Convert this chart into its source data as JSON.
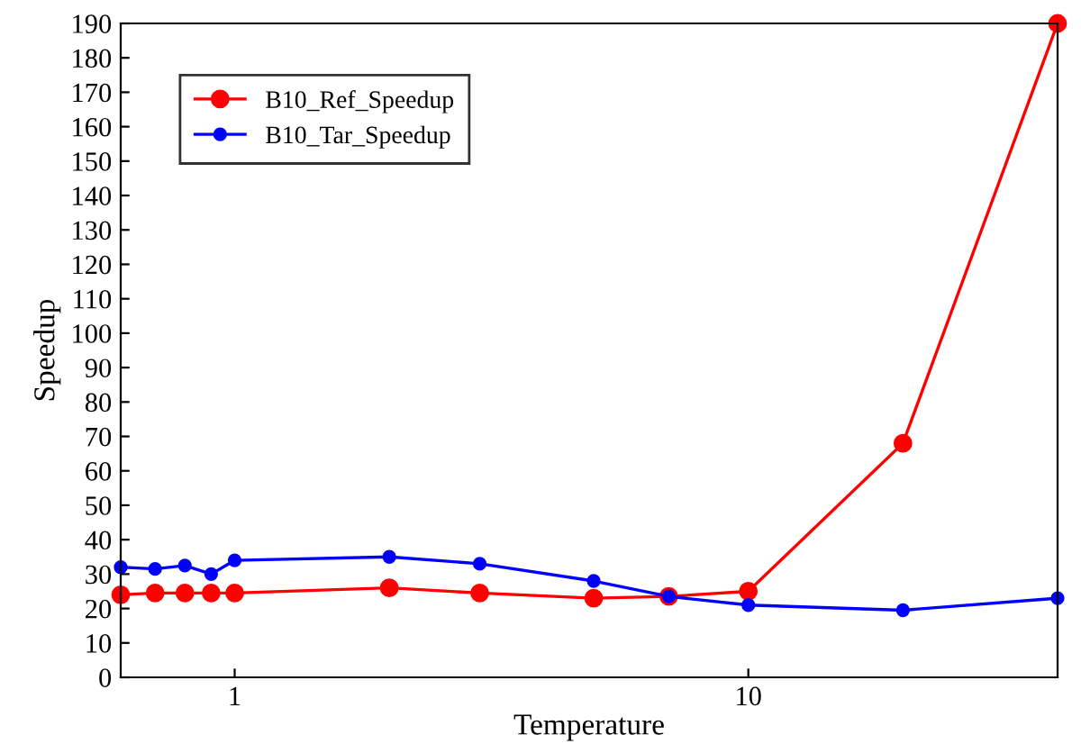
{
  "chart_data": {
    "type": "line",
    "xlabel": "Temperature",
    "ylabel": "Speedup",
    "log": "x",
    "x": [
      0.6,
      0.7,
      0.8,
      0.9,
      1,
      2,
      3,
      5,
      7,
      10,
      20,
      40
    ],
    "series": [
      {
        "name": "B10_Ref_Speedup",
        "color": "#ff0000",
        "values": [
          24,
          24.5,
          24.5,
          24.5,
          24.5,
          26,
          24.5,
          23,
          23.5,
          25,
          68,
          190
        ]
      },
      {
        "name": "B10_Tar_Speedup",
        "color": "#0000ff",
        "values": [
          32,
          31.5,
          32.5,
          30,
          34,
          35,
          33,
          28,
          23.5,
          21,
          19.5,
          23
        ]
      }
    ],
    "xlim": [
      0.6,
      40
    ],
    "ylim": [
      0,
      190
    ],
    "xticks": [
      1,
      10
    ],
    "yticks": [
      0,
      10,
      20,
      30,
      40,
      50,
      60,
      70,
      80,
      90,
      100,
      110,
      120,
      130,
      140,
      150,
      160,
      170,
      180,
      190
    ],
    "marker": "circle",
    "line_style": "solid",
    "grid": false,
    "legend": "top left"
  }
}
